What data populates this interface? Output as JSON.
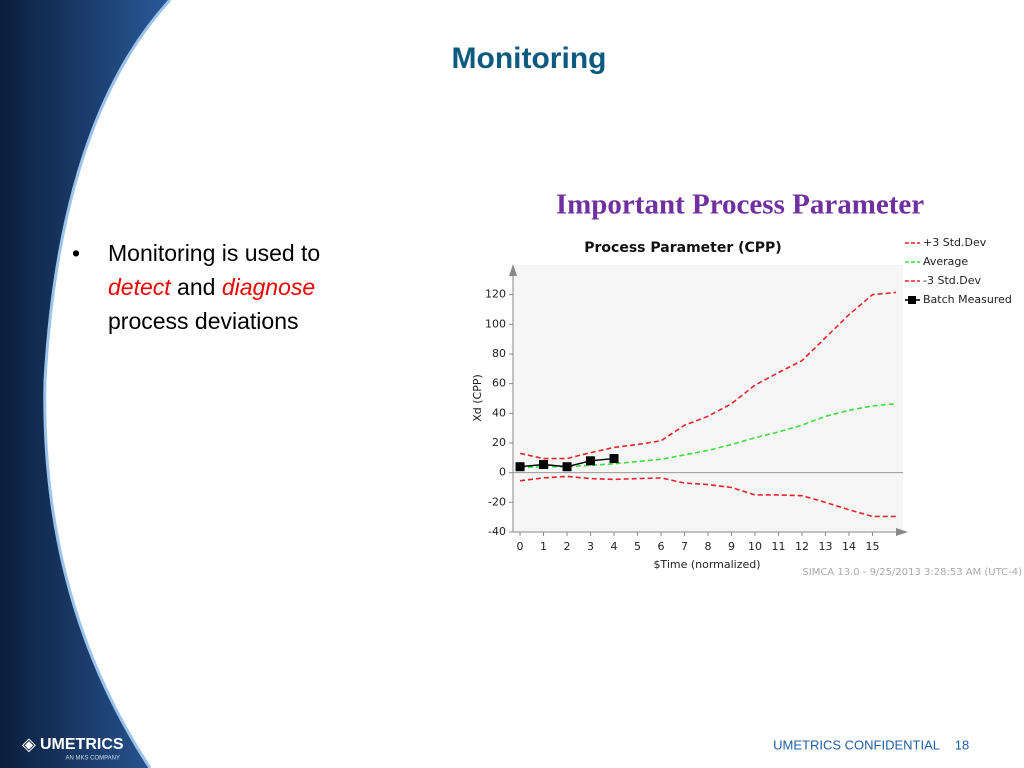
{
  "slide": {
    "title": "Monitoring",
    "subtitle": "Important Process Parameter",
    "bullet": [
      "Monitoring is used to",
      "detect",
      "and",
      "diagnose",
      "process deviations"
    ],
    "footer": "UMETRICS CONFIDENTIAL",
    "page": "18",
    "logo": "UMETRICS",
    "logo_sub": "AN MKS COMPANY"
  },
  "chart_data": {
    "type": "line",
    "title": "Process Parameter (CPP)",
    "x_label": "$Time (normalized)",
    "y_label": "Xd (CPP)",
    "note": "SIMCA 13.0 - 9/25/2013 3:28:53 AM (UTC-4)",
    "x": [
      0,
      1,
      2,
      3,
      4,
      5,
      6,
      7,
      8,
      9,
      10,
      11,
      12,
      13,
      14,
      15,
      16
    ],
    "xlim": [
      -0.3,
      16.3
    ],
    "xticks": [
      0,
      1,
      2,
      3,
      4,
      5,
      6,
      7,
      8,
      9,
      10,
      11,
      12,
      13,
      14,
      15
    ],
    "ylim": [
      -40,
      140
    ],
    "yticks": [
      -40,
      -20,
      0,
      20,
      40,
      60,
      80,
      100,
      120
    ],
    "legend": "right",
    "series": [
      {
        "name": "+3 Std.Dev",
        "color": "#e8262a",
        "dashed": true,
        "values": [
          13,
          9.5,
          9.5,
          13.5,
          17,
          19,
          21.5,
          32,
          38,
          46.5,
          59,
          67.5,
          75.5,
          91,
          106.5,
          120,
          121.5
        ]
      },
      {
        "name": "Average",
        "color": "#3fe03f",
        "dashed": true,
        "values": [
          3.5,
          4,
          4,
          5,
          6,
          7.5,
          9,
          12,
          15,
          19,
          23.5,
          27.5,
          32,
          38,
          42,
          45,
          46.5
        ]
      },
      {
        "name": "-3 Std.Dev",
        "color": "#e8262a",
        "dashed": true,
        "values": [
          -5.5,
          -3.5,
          -2.5,
          -4,
          -4.5,
          -4,
          -3.5,
          -7,
          -8,
          -10,
          -15,
          -15,
          -15.5,
          -20,
          -25,
          -29.5,
          -29.5
        ]
      },
      {
        "name": "Batch Measured",
        "color": "#000000",
        "dashed": false,
        "markers": true,
        "values": [
          4,
          5.5,
          4,
          8,
          9.5,
          null,
          null,
          null,
          null,
          null,
          null,
          null,
          null,
          null,
          null,
          null,
          null
        ]
      }
    ]
  }
}
